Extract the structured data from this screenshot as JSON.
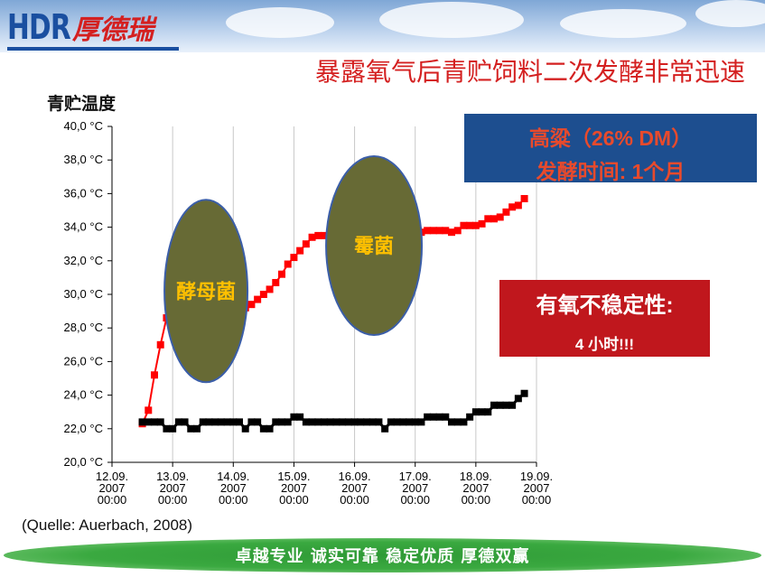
{
  "header": {
    "logo_text": "HDR",
    "logo_cn": "厚德瑞"
  },
  "title": "暴露氧气后青贮饲料二次发酵非常迅速",
  "info_box": {
    "line1": "高粱（26% DM）",
    "line2": "发酵时间: 1个月"
  },
  "stability_box": {
    "title": "有氧不稳定性:",
    "value": "4 小时!!!"
  },
  "source": "(Quelle: Auerbach, 2008)",
  "slogan": "卓越专业  诚实可靠  稳定优质  厚德双赢",
  "colors": {
    "red_series": "#ff0000",
    "black_series": "#000000",
    "ellipse_fill": "#676a35",
    "ellipse_stroke": "#3b5ea8",
    "ellipse_text": "#ffc000"
  },
  "chart_data": {
    "type": "line",
    "ylabel": "青贮温度",
    "ylim": [
      20,
      40
    ],
    "y_ticks": [
      "40,0 °C",
      "38,0 °C",
      "36,0 °C",
      "34,0 °C",
      "32,0 °C",
      "30,0 °C",
      "28,0 °C",
      "26,0 °C",
      "24,0 °C",
      "22,0 °C",
      "20,0 °C"
    ],
    "x_range": [
      0,
      7
    ],
    "x_ticks": [
      {
        "l1": "12.09.",
        "l2": "2007",
        "l3": "00:00"
      },
      {
        "l1": "13.09.",
        "l2": "2007",
        "l3": "00:00"
      },
      {
        "l1": "14.09.",
        "l2": "2007",
        "l3": "00:00"
      },
      {
        "l1": "15.09.",
        "l2": "2007",
        "l3": "00:00"
      },
      {
        "l1": "16.09.",
        "l2": "2007",
        "l3": "00:00"
      },
      {
        "l1": "17.09.",
        "l2": "2007",
        "l3": "00:00"
      },
      {
        "l1": "18.09.",
        "l2": "2007",
        "l3": "00:00"
      },
      {
        "l1": "19.09.",
        "l2": "2007",
        "l3": "00:00"
      }
    ],
    "grid": "vertical",
    "annotations": [
      {
        "text": "酵母菌",
        "cx": 1.55,
        "cy": 30.2
      },
      {
        "text": "霉菌",
        "cx": 4.32,
        "cy": 32.9
      }
    ],
    "series": [
      {
        "color": "#ff0000",
        "x": [
          0.5,
          0.6,
          0.7,
          0.8,
          0.9,
          1.0,
          1.1,
          1.2,
          1.3,
          1.4,
          1.5,
          1.6,
          1.7,
          1.8,
          1.9,
          2.0,
          2.1,
          2.2,
          2.3,
          2.4,
          2.5,
          2.6,
          2.7,
          2.8,
          2.9,
          3.0,
          3.1,
          3.2,
          3.3,
          3.4,
          3.5,
          3.6,
          3.7,
          3.8,
          3.9,
          4.0,
          4.1,
          4.2,
          4.3,
          4.4,
          4.5,
          4.6,
          4.7,
          4.8,
          4.9,
          5.0,
          5.1,
          5.2,
          5.3,
          5.4,
          5.5,
          5.6,
          5.7,
          5.8,
          5.9,
          6.0,
          6.1,
          6.2,
          6.3,
          6.4,
          6.5,
          6.6,
          6.7,
          6.8
        ],
        "y": [
          22.3,
          23.1,
          25.2,
          27.0,
          28.6,
          29.0,
          29.1,
          29.2,
          29.2,
          29.3,
          29.4,
          29.6,
          29.7,
          29.8,
          29.9,
          29.0,
          29.2,
          29.2,
          29.4,
          29.7,
          30.0,
          30.3,
          30.7,
          31.2,
          31.8,
          32.2,
          32.6,
          33.0,
          33.4,
          33.5,
          33.5,
          33.6,
          33.6,
          33.7,
          33.7,
          33.7,
          33.7,
          33.7,
          33.7,
          33.7,
          33.7,
          33.7,
          33.7,
          33.7,
          33.7,
          33.7,
          33.7,
          33.8,
          33.8,
          33.8,
          33.8,
          33.7,
          33.8,
          34.1,
          34.1,
          34.1,
          34.2,
          34.5,
          34.5,
          34.6,
          34.9,
          35.2,
          35.3,
          35.7
        ]
      },
      {
        "color": "#000000",
        "x": [
          0.5,
          0.6,
          0.7,
          0.8,
          0.9,
          1.0,
          1.1,
          1.2,
          1.3,
          1.4,
          1.5,
          1.6,
          1.7,
          1.8,
          1.9,
          2.0,
          2.1,
          2.2,
          2.3,
          2.4,
          2.5,
          2.6,
          2.7,
          2.8,
          2.9,
          3.0,
          3.1,
          3.2,
          3.3,
          3.4,
          3.5,
          3.6,
          3.7,
          3.8,
          3.9,
          4.0,
          4.1,
          4.2,
          4.3,
          4.4,
          4.5,
          4.6,
          4.7,
          4.8,
          4.9,
          5.0,
          5.1,
          5.2,
          5.3,
          5.4,
          5.5,
          5.6,
          5.7,
          5.8,
          5.9,
          6.0,
          6.1,
          6.2,
          6.3,
          6.4,
          6.5,
          6.6,
          6.7,
          6.8
        ],
        "y": [
          22.4,
          22.4,
          22.4,
          22.4,
          22.0,
          22.0,
          22.4,
          22.4,
          22.0,
          22.0,
          22.4,
          22.4,
          22.4,
          22.4,
          22.4,
          22.4,
          22.4,
          22.0,
          22.4,
          22.4,
          22.0,
          22.0,
          22.4,
          22.4,
          22.4,
          22.7,
          22.7,
          22.4,
          22.4,
          22.4,
          22.4,
          22.4,
          22.4,
          22.4,
          22.4,
          22.4,
          22.4,
          22.4,
          22.4,
          22.4,
          22.0,
          22.4,
          22.4,
          22.4,
          22.4,
          22.4,
          22.4,
          22.7,
          22.7,
          22.7,
          22.7,
          22.4,
          22.4,
          22.4,
          22.7,
          23.0,
          23.0,
          23.0,
          23.4,
          23.4,
          23.4,
          23.4,
          23.8,
          24.1
        ]
      }
    ]
  }
}
